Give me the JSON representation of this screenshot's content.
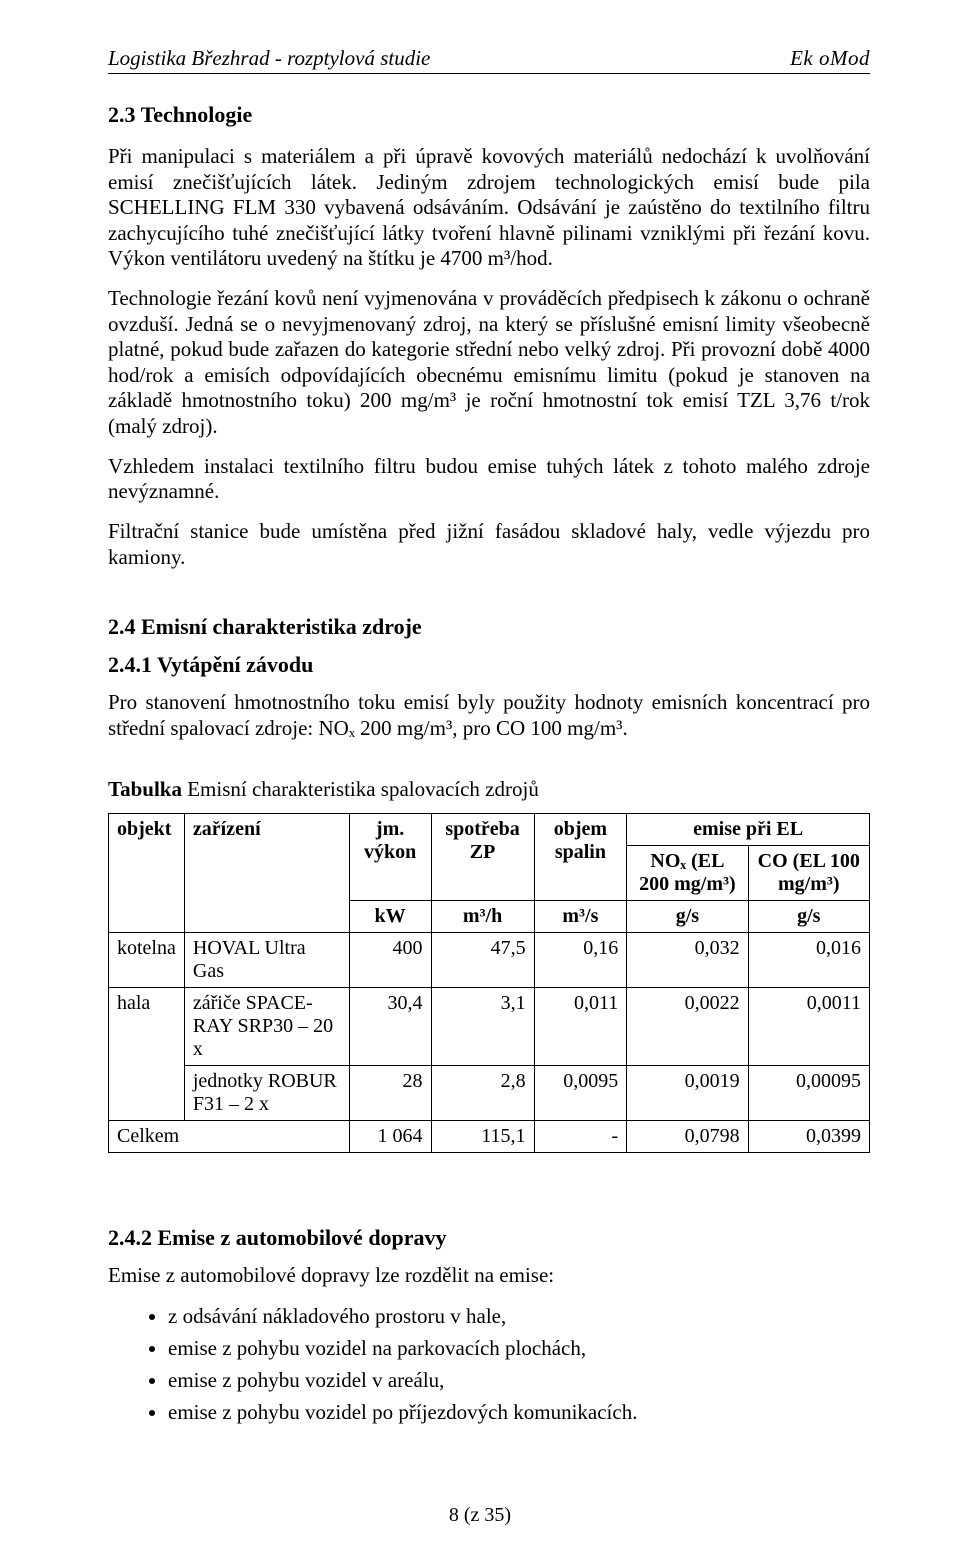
{
  "header": {
    "left": "Logistika Březhrad - rozptylová studie",
    "right": "Ek oMod"
  },
  "s23": {
    "title": "2.3 Technologie",
    "p1": "Při manipulaci s materiálem a při úpravě kovových materiálů nedochází k uvolňování emisí znečišťujících látek. Jediným zdrojem technologických emisí bude pila SCHELLING FLM 330 vybavená odsáváním. Odsávání je zaústěno do textilního filtru zachycujícího tuhé znečišťující látky tvoření hlavně pilinami vzniklými při řezání kovu. Výkon ventilátoru uvedený na štítku je 4700 m³/hod.",
    "p2": "Technologie řezání kovů není vyjmenována v prováděcích předpisech k zákonu o ochraně ovzduší. Jedná se o nevyjmenovaný zdroj, na který se příslušné emisní limity všeobecně platné, pokud bude zařazen do kategorie střední nebo velký zdroj. Při provozní době 4000 hod/rok a emisích odpovídajících obecnému emisnímu limitu (pokud je stanoven na základě hmotnostního toku) 200 mg/m³ je roční hmotnostní tok emisí TZL 3,76 t/rok (malý zdroj).",
    "p3": "Vzhledem instalaci textilního filtru budou emise tuhých látek z tohoto malého zdroje nevýznamné.",
    "p4": "Filtrační stanice bude umístěna před jižní fasádou skladové haly, vedle výjezdu pro kamiony."
  },
  "s24": {
    "title": "2.4 Emisní charakteristika zdroje",
    "s241": {
      "title": "2.4.1   Vytápění závodu",
      "p1": "Pro stanovení hmotnostního toku emisí byly použity hodnoty emisních koncentrací pro střední spalovací zdroje: NOₓ 200 mg/m³, pro CO 100 mg/m³."
    }
  },
  "table_caption_bold": "Tabulka",
  "table_caption_rest": "  Emisní charakteristika spalovacích zdrojů",
  "table": {
    "head": {
      "objekt": "objekt",
      "zarizeni": "zařízení",
      "jm_vykon": "jm. výkon",
      "spotreba": "spotřeba ZP",
      "objem": "objem spalin",
      "emise": "emise při EL",
      "nox": "NOₓ (EL 200 mg/m³)",
      "co": "CO (EL 100 mg/m³)",
      "units_kw": "kW",
      "units_m3h": "m³/h",
      "units_m3s": "m³/s",
      "units_gs1": "g/s",
      "units_gs2": "g/s"
    },
    "rows": [
      {
        "objekt": "kotelna",
        "zarizeni": "HOVAL Ultra Gas",
        "kw": "400",
        "m3h": "47,5",
        "m3s": "0,16",
        "nox": "0,032",
        "co": "0,016"
      },
      {
        "objekt": "hala",
        "zarizeni": "zářiče SPACE-RAY SRP30 – 20 x",
        "kw": "30,4",
        "m3h": "3,1",
        "m3s": "0,011",
        "nox": "0,0022",
        "co": "0,0011"
      },
      {
        "objekt": "",
        "zarizeni": "jednotky ROBUR F31 – 2 x",
        "kw": "28",
        "m3h": "2,8",
        "m3s": "0,0095",
        "nox": "0,0019",
        "co": "0,00095"
      }
    ],
    "sum": {
      "label": "Celkem",
      "kw": "1 064",
      "m3h": "115,1",
      "m3s": "-",
      "nox": "0,0798",
      "co": "0,0399"
    }
  },
  "s242": {
    "title": "2.4.2   Emise z automobilové dopravy",
    "p1": "Emise z automobilové dopravy lze rozdělit na emise:",
    "bullets": [
      "z odsávání nákladového prostoru v hale,",
      "emise z pohybu vozidel na parkovacích plochách,",
      "emise z pohybu vozidel v areálu,",
      "emise z pohybu vozidel po příjezdových komunikacích."
    ]
  },
  "footer": "8 (z 35)"
}
